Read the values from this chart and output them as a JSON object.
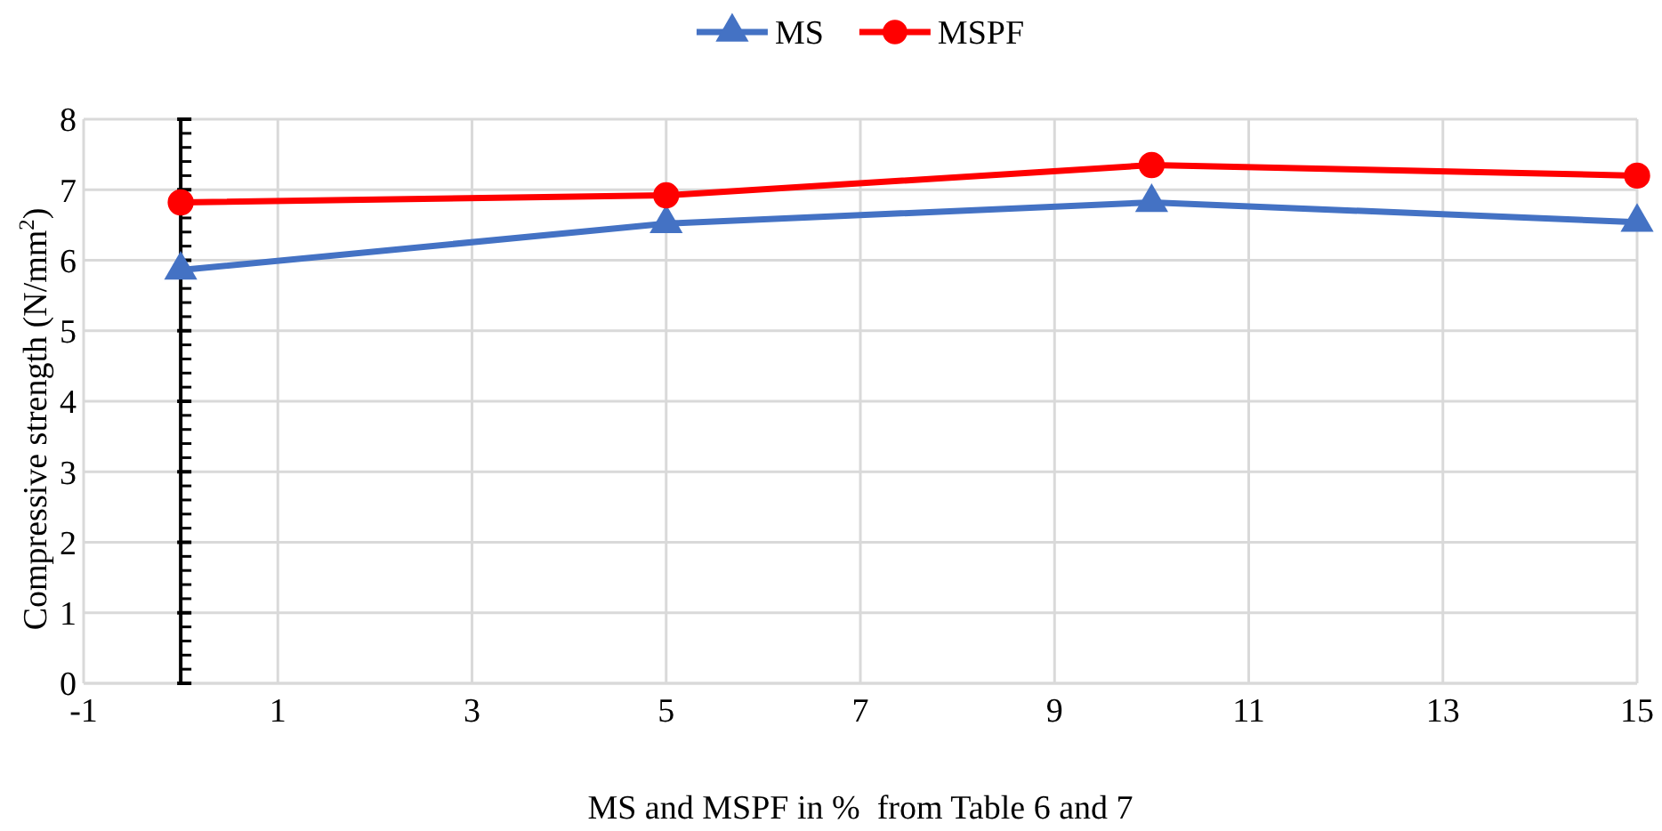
{
  "chart_data": {
    "type": "line",
    "xlabel": "MS and MSPF in %  from Table 6 and 7",
    "ylabel": "Compressive strength (N/mm$^{2}$)",
    "x": [
      0,
      5,
      10,
      15
    ],
    "series": [
      {
        "name": "MS",
        "color": "#4472c4",
        "marker": "triangle",
        "values": [
          5.86,
          6.52,
          6.82,
          6.54
        ]
      },
      {
        "name": "MSPF",
        "color": "#ff0000",
        "marker": "circle",
        "values": [
          6.82,
          6.92,
          7.35,
          7.2
        ]
      }
    ],
    "xlim": [
      -1,
      15
    ],
    "xticks": [
      -1,
      1,
      3,
      5,
      7,
      9,
      11,
      13,
      15
    ],
    "ylim": [
      0,
      8
    ],
    "yticks": [
      0,
      1,
      2,
      3,
      4,
      5,
      6,
      7,
      8
    ],
    "ref_lines": [
      {
        "axis": "x",
        "value": 0,
        "color": "#000000"
      }
    ],
    "grid": true,
    "legend": "top",
    "line_style": "solid"
  }
}
